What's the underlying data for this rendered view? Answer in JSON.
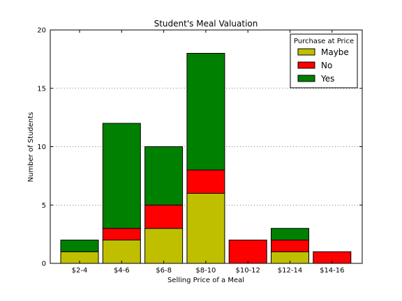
{
  "chart_data": {
    "type": "bar",
    "stacked": true,
    "title": "Student's Meal Valuation",
    "xlabel": "Selling Price of a Meal",
    "ylabel": "Number of Students",
    "categories": [
      "$2-4",
      "$4-6",
      "$6-8",
      "$8-10",
      "$10-12",
      "$12-14",
      "$14-16"
    ],
    "ylim": [
      0,
      20
    ],
    "yticks": [
      0,
      5,
      10,
      15,
      20
    ],
    "grid": "horizontal-dotted",
    "legend": {
      "title": "Purchase at Price",
      "placement": "top-right"
    },
    "series": [
      {
        "name": "Maybe",
        "color": "#bfbf00",
        "values": [
          1,
          2,
          3,
          6,
          0,
          1,
          0
        ]
      },
      {
        "name": "No",
        "color": "#ff0000",
        "values": [
          0,
          1,
          2,
          2,
          2,
          1,
          1
        ]
      },
      {
        "name": "Yes",
        "color": "#008000",
        "values": [
          1,
          9,
          5,
          10,
          0,
          1,
          0
        ]
      }
    ]
  }
}
